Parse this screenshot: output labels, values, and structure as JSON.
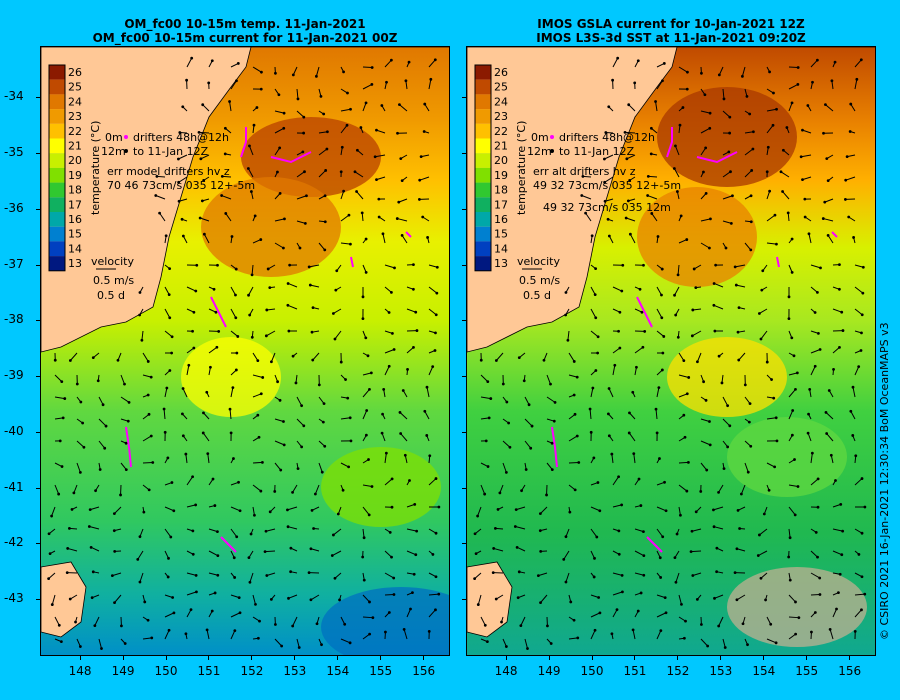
{
  "left_panel": {
    "title_line1": "OM_fc00 10-15m temp. 11-Jan-2021",
    "title_line2": "OM_fc00 10-15m current for 11-Jan-2021 00Z",
    "drifters_line1": "drifters 48h@12h",
    "drifters_line2": "to 11-Jan 12Z",
    "drifter_prefix": "0m",
    "drifter_prefix2": "12m",
    "err_line1": "err model drifters hv z",
    "err_line2": "70 46 73cm/s 035 12+-5m",
    "err_line3": ""
  },
  "right_panel": {
    "title_line1": "IMOS GSLA current for 10-Jan-2021 12Z",
    "title_line2": "IMOS L3S-3d SST at 11-Jan-2021 09:20Z",
    "drifters_line1": "drifters 48h@12h",
    "drifters_line2": "to 11-Jan 12Z",
    "drifter_prefix": "0m",
    "drifter_prefix2": "12m",
    "err_line1": "err alt drifters hv z",
    "err_line2": "49 32 73cm/s 035 12+-5m",
    "err_line3": "49 32 73cm/s 035 12m"
  },
  "colorbar": {
    "label": "temperature (°C)",
    "ticks": [
      "26",
      "25",
      "24",
      "23",
      "22",
      "21",
      "20",
      "19",
      "18",
      "17",
      "16",
      "15",
      "14",
      "13"
    ],
    "colors": [
      "#8b1a00",
      "#c04a00",
      "#e07800",
      "#f09a00",
      "#ffc000",
      "#ffff00",
      "#c8f000",
      "#80e000",
      "#30c830",
      "#10b060",
      "#00a8a8",
      "#0080d0",
      "#0040c0",
      "#001880"
    ]
  },
  "velocity_legend": {
    "label": "velocity",
    "speed": "0.5 m/s",
    "duration": "0.5 d"
  },
  "y_axis": {
    "ticks": [
      "-34",
      "-35",
      "-36",
      "-37",
      "-38",
      "-39",
      "-40",
      "-41",
      "-42",
      "-43"
    ]
  },
  "x_axis": {
    "ticks": [
      "148",
      "149",
      "150",
      "151",
      "152",
      "153",
      "154",
      "155",
      "156"
    ]
  },
  "credit": "© CSIRO 2021  16-Jan-2021 12:30:34 BoM OceanMAPS v3",
  "map_data": {
    "lon_range": [
      147.1,
      156.6
    ],
    "lat_range": [
      -44.0,
      -33.1
    ]
  }
}
